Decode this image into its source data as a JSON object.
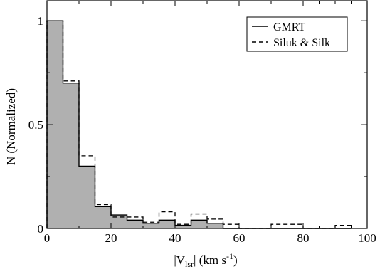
{
  "chart_data": {
    "type": "bar",
    "title": "",
    "xlabel_parts": [
      "|V",
      "lsr",
      "| (km s",
      "-1",
      ")"
    ],
    "ylabel": "N (Normalized)",
    "xlim": [
      0,
      100
    ],
    "ylim": [
      0,
      1.1
    ],
    "x_ticks": [
      0,
      20,
      40,
      60,
      80,
      100
    ],
    "x_tick_labels": [
      "0",
      "20",
      "40",
      "60",
      "80",
      "100"
    ],
    "y_ticks": [
      0,
      0.5,
      1
    ],
    "y_tick_labels": [
      "0",
      "0.5",
      "1"
    ],
    "x_minor_step": 5,
    "y_minor_step": 0.25,
    "bin_edges": [
      0,
      5,
      10,
      15,
      20,
      25,
      30,
      35,
      40,
      45,
      50,
      55,
      60,
      65,
      70,
      75,
      80,
      85,
      90,
      95
    ],
    "series": [
      {
        "name": "GMRT",
        "style": "solid-filled",
        "values": [
          1.0,
          0.7,
          0.3,
          0.105,
          0.065,
          0.04,
          0.025,
          0.04,
          0.015,
          0.04,
          0.025,
          0.0,
          0.0,
          0.0,
          0.0,
          0.0,
          0.0,
          0.0,
          0.0
        ]
      },
      {
        "name": "Siluk & Silk",
        "style": "dashed",
        "values": [
          1.0,
          0.71,
          0.35,
          0.115,
          0.055,
          0.055,
          0.03,
          0.08,
          0.02,
          0.07,
          0.045,
          0.02,
          0.0,
          0.0,
          0.02,
          0.02,
          0.0,
          0.0,
          0.015
        ]
      }
    ],
    "legend": {
      "position": "top-right"
    },
    "colors": {
      "fill": "#b0b0b0",
      "line": "#000000",
      "background": "#ffffff"
    }
  }
}
